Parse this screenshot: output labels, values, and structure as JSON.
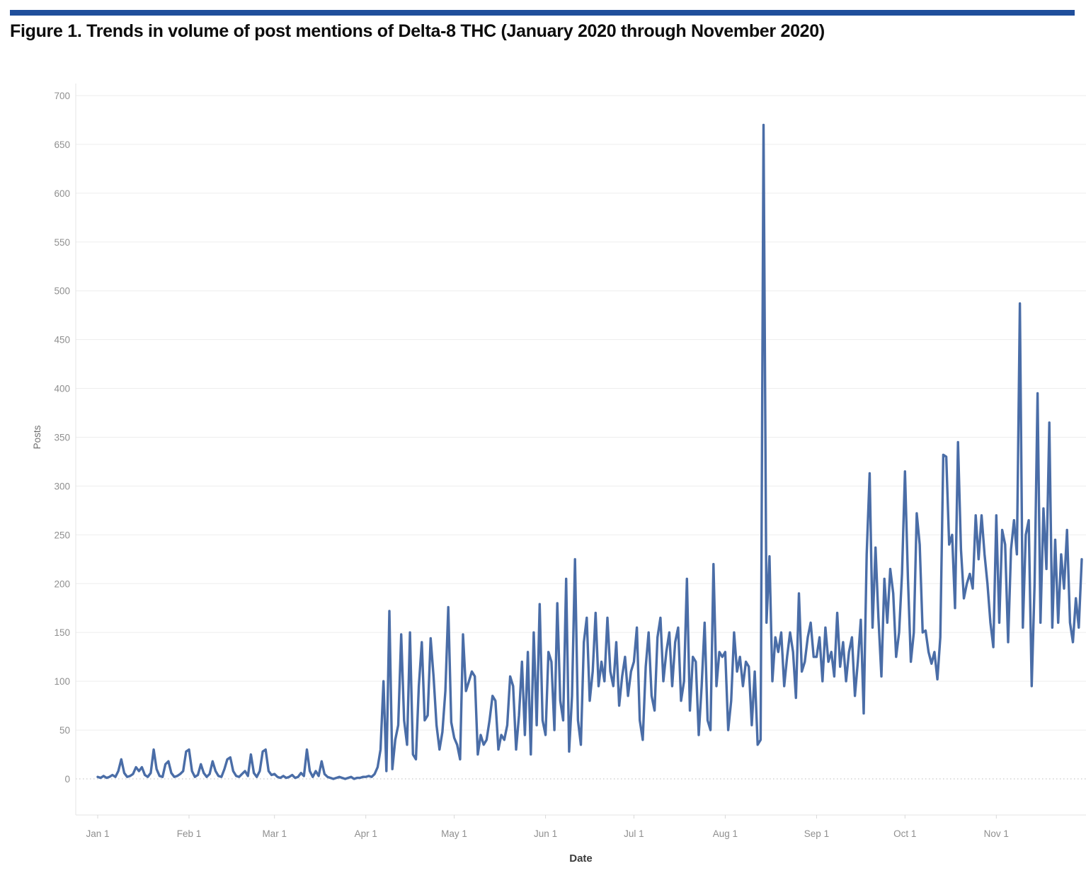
{
  "figure": {
    "title": "Figure 1. Trends in volume of post mentions of Delta-8 THC (January 2020 through November 2020)"
  },
  "accent_bar_color": "#1f4e9b",
  "chart_data": {
    "type": "line",
    "xlabel": "Date",
    "ylabel": "Posts",
    "line_color": "#4a6da7",
    "grid_color": "#ededed",
    "zero_line_color": "#c9c9c9",
    "axis_line_color": "#e4e4e4",
    "tick_label_color": "#8f8f8f",
    "axis_title_color": "#3b3b3b",
    "y_axis": {
      "min": 0,
      "max": 700,
      "step": 50
    },
    "x_tick_labels": [
      "Jan 1",
      "Feb 1",
      "Mar 1",
      "Apr 1",
      "May 1",
      "Jun 1",
      "Jul 1",
      "Aug 1",
      "Sep 1",
      "Oct 1",
      "Nov 1"
    ],
    "legend": "none",
    "grid": "horizontal",
    "months": [
      {
        "name": "Jan",
        "values": [
          2,
          1,
          3,
          1,
          2,
          4,
          2,
          8,
          20,
          6,
          2,
          3,
          5,
          12,
          8,
          12,
          4,
          2,
          6,
          30,
          10,
          3,
          2,
          15,
          18,
          6,
          2,
          3,
          5,
          8,
          28
        ]
      },
      {
        "name": "Feb",
        "values": [
          30,
          8,
          2,
          4,
          15,
          6,
          2,
          5,
          18,
          8,
          3,
          2,
          10,
          20,
          22,
          8,
          3,
          2,
          5,
          8,
          3,
          25,
          6,
          2,
          8,
          28,
          30,
          8,
          4
        ]
      },
      {
        "name": "Mar",
        "values": [
          5,
          2,
          1,
          3,
          1,
          2,
          4,
          1,
          2,
          6,
          3,
          30,
          8,
          2,
          8,
          3,
          18,
          5,
          2,
          1,
          0,
          1,
          2,
          1,
          0,
          1,
          2,
          0,
          1,
          1,
          2
        ]
      },
      {
        "name": "Apr",
        "values": [
          2,
          3,
          2,
          5,
          12,
          30,
          100,
          8,
          172,
          10,
          40,
          55,
          148,
          60,
          35,
          150,
          25,
          20,
          95,
          140,
          60,
          65,
          144,
          105,
          55,
          30,
          48,
          90,
          176,
          58
        ]
      },
      {
        "name": "May",
        "values": [
          42,
          35,
          20,
          148,
          90,
          100,
          110,
          105,
          25,
          45,
          35,
          40,
          60,
          85,
          80,
          30,
          45,
          40,
          55,
          105,
          95,
          30,
          65,
          120,
          45,
          130,
          25,
          150,
          55,
          179,
          60
        ]
      },
      {
        "name": "Jun",
        "values": [
          45,
          130,
          120,
          50,
          180,
          80,
          60,
          205,
          28,
          85,
          225,
          60,
          35,
          140,
          165,
          80,
          110,
          170,
          95,
          120,
          100,
          165,
          110,
          95,
          140,
          75,
          105,
          125,
          85,
          110
        ]
      },
      {
        "name": "Jul",
        "values": [
          120,
          155,
          60,
          40,
          115,
          150,
          85,
          70,
          145,
          165,
          100,
          130,
          150,
          95,
          140,
          155,
          80,
          100,
          205,
          70,
          125,
          120,
          45,
          95,
          160,
          60,
          50,
          220,
          95,
          130,
          125
        ]
      },
      {
        "name": "Aug",
        "values": [
          130,
          50,
          80,
          150,
          110,
          125,
          95,
          120,
          115,
          55,
          110,
          35,
          40,
          670,
          160,
          228,
          100,
          145,
          130,
          150,
          95,
          125,
          150,
          130,
          83,
          190,
          110,
          120,
          145,
          160,
          125
        ]
      },
      {
        "name": "Sep",
        "values": [
          125,
          145,
          100,
          155,
          120,
          130,
          105,
          170,
          115,
          140,
          100,
          130,
          145,
          85,
          120,
          163,
          67,
          230,
          313,
          155,
          237,
          165,
          105,
          205,
          160,
          215,
          190,
          125,
          150,
          210
        ]
      },
      {
        "name": "Oct",
        "values": [
          315,
          205,
          120,
          150,
          272,
          240,
          150,
          152,
          130,
          118,
          130,
          102,
          145,
          332,
          330,
          240,
          250,
          175,
          345,
          235,
          185,
          200,
          210,
          195,
          270,
          225,
          270,
          230,
          200,
          160,
          135
        ]
      },
      {
        "name": "Nov",
        "values": [
          270,
          160,
          255,
          240,
          140,
          235,
          265,
          230,
          487,
          155,
          250,
          265,
          95,
          200,
          395,
          160,
          277,
          215,
          365,
          155,
          245,
          160,
          230,
          195,
          255,
          160,
          140,
          185,
          155,
          225
        ]
      }
    ]
  }
}
